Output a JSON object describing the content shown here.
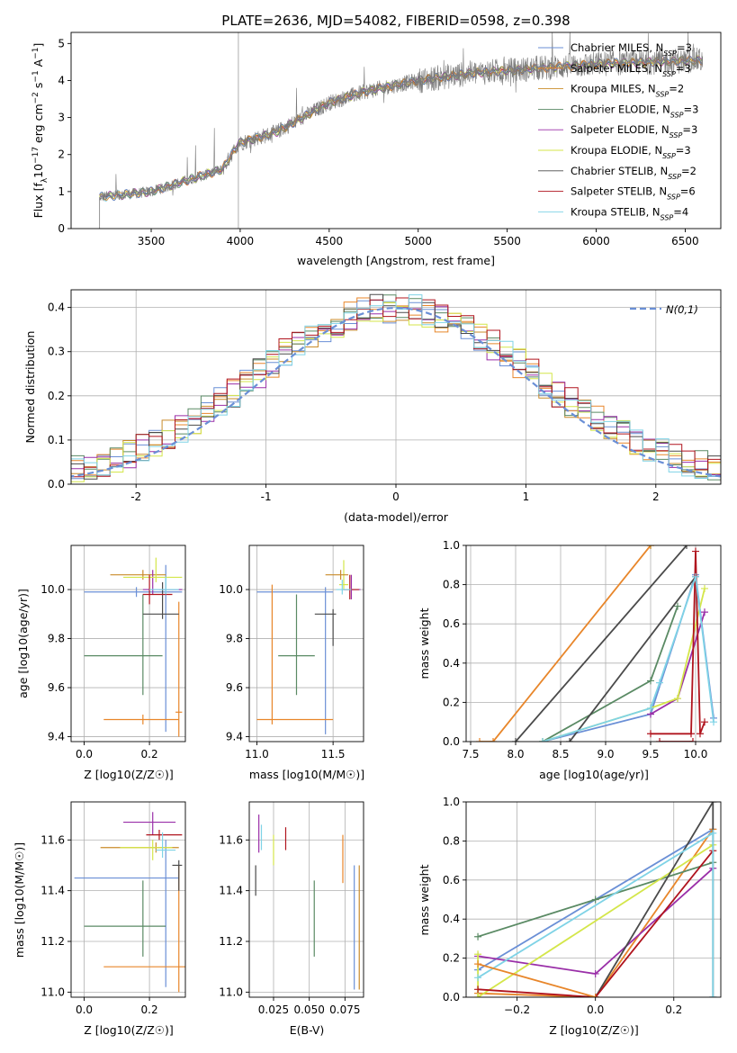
{
  "chart_data": [
    {
      "type": "line",
      "title": "PLATE=2636, MJD=54082, FIBERID=0598, z=0.398",
      "xlabel": "wavelength [Angstrom, rest frame]",
      "ylabel_parts": [
        "Flux [f",
        "λ",
        "10",
        "−17",
        " erg cm",
        "−2",
        " s",
        "−1",
        " A",
        "−1",
        "]"
      ],
      "xlim": [
        3050,
        6700
      ],
      "ylim": [
        0,
        5.3
      ],
      "xticks": [
        3500,
        4000,
        4500,
        5000,
        5500,
        6000,
        6500
      ],
      "yticks": [
        0,
        1,
        2,
        3,
        4,
        5
      ],
      "legend_position": "upper-right",
      "spectrum_range": [
        3210,
        6600
      ],
      "series": [
        {
          "name": "Chabrier MILES, N",
          "sub": "SSP",
          "tail": "=3",
          "color": "#6a8fd6"
        },
        {
          "name": "Salpeter MILES, N",
          "sub": "SSP",
          "tail": "=3",
          "color": "#e8862a"
        },
        {
          "name": "Kroupa MILES, N",
          "sub": "SSP",
          "tail": "=2",
          "color": "#c98b2a"
        },
        {
          "name": "Chabrier ELODIE, N",
          "sub": "SSP",
          "tail": "=3",
          "color": "#5a8a64"
        },
        {
          "name": "Salpeter ELODIE, N",
          "sub": "SSP",
          "tail": "=3",
          "color": "#9a2fa8"
        },
        {
          "name": "Kroupa ELODIE, N",
          "sub": "SSP",
          "tail": "=3",
          "color": "#d4e64a"
        },
        {
          "name": "Chabrier STELIB, N",
          "sub": "SSP",
          "tail": "=2",
          "color": "#4a4a4a"
        },
        {
          "name": "Salpeter STELIB, N",
          "sub": "SSP",
          "tail": "=6",
          "color": "#b0141e"
        },
        {
          "name": "Kroupa STELIB, N",
          "sub": "SSP",
          "tail": "=4",
          "color": "#7fd3e6"
        }
      ],
      "continuum_knots": [
        [
          3210,
          0.85
        ],
        [
          3500,
          1.0
        ],
        [
          3700,
          1.3
        ],
        [
          3900,
          1.6
        ],
        [
          3990,
          2.3
        ],
        [
          4200,
          2.6
        ],
        [
          4500,
          3.4
        ],
        [
          4700,
          3.7
        ],
        [
          5000,
          4.0
        ],
        [
          5300,
          4.2
        ],
        [
          5600,
          4.3
        ],
        [
          6000,
          4.45
        ],
        [
          6600,
          4.55
        ]
      ]
    },
    {
      "type": "histogram",
      "xlabel": "(data-model)/error",
      "ylabel": "Normed distribution",
      "xlim": [
        -2.5,
        2.5
      ],
      "ylim": [
        0,
        0.44
      ],
      "xticks": [
        -2,
        -1,
        0,
        1,
        2
      ],
      "yticks": [
        0.0,
        0.1,
        0.2,
        0.3,
        0.4
      ],
      "bin_width": 0.1,
      "legend_position": "upper-right",
      "reference_curve": {
        "name": "N(0,1)",
        "color": "#6a8fd6",
        "mean": 0,
        "sigma": 1
      }
    },
    {
      "type": "scatter",
      "name": "age-vs-metallicity",
      "xlabel": "Z [log10(Z/Z☉)]",
      "ylabel": "age  [log10(age/yr)]",
      "xlim": [
        -0.04,
        0.31
      ],
      "ylim": [
        9.38,
        10.18
      ],
      "xticks": [
        0.0,
        0.2
      ],
      "yticks": [
        9.4,
        9.6,
        9.8,
        10.0
      ],
      "points": [
        {
          "series": 0,
          "x": 0.16,
          "y": 9.99,
          "xerr": [
            0.16,
            0.14
          ],
          "yerr": [
            0.02,
            0.02
          ]
        },
        {
          "series": 0,
          "x": 0.25,
          "y": 10.0,
          "xerr": [
            0.02,
            0.05
          ],
          "yerr": [
            0.58,
            0.1
          ]
        },
        {
          "series": 1,
          "x": 0.18,
          "y": 9.47,
          "xerr": [
            0.12,
            0.11
          ],
          "yerr": [
            0.02,
            0.02
          ]
        },
        {
          "series": 1,
          "x": 0.29,
          "y": 9.5,
          "xerr": [
            0.01,
            0.01
          ],
          "yerr": [
            0.1,
            0.45
          ]
        },
        {
          "series": 2,
          "x": 0.18,
          "y": 10.06,
          "xerr": [
            0.1,
            0.07
          ],
          "yerr": [
            0.02,
            0.02
          ]
        },
        {
          "series": 3,
          "x": 0.18,
          "y": 9.73,
          "xerr": [
            0.18,
            0.06
          ],
          "yerr": [
            0.16,
            0.25
          ]
        },
        {
          "series": 4,
          "x": 0.21,
          "y": 10.0,
          "xerr": [
            0.03,
            0.09
          ],
          "yerr": [
            0.02,
            0.08
          ]
        },
        {
          "series": 5,
          "x": 0.22,
          "y": 10.05,
          "xerr": [
            0.1,
            0.08
          ],
          "yerr": [
            0.02,
            0.08
          ]
        },
        {
          "series": 6,
          "x": 0.24,
          "y": 9.9,
          "xerr": [
            0.06,
            0.05
          ],
          "yerr": [
            0.02,
            0.13
          ]
        },
        {
          "series": 7,
          "x": 0.2,
          "y": 9.98,
          "xerr": [
            0.02,
            0.07
          ],
          "yerr": [
            0.04,
            0.08
          ]
        },
        {
          "series": 8,
          "x": 0.25,
          "y": 10.0,
          "xerr": [
            0.05,
            0.04
          ],
          "yerr": [
            0.02,
            0.05
          ]
        }
      ]
    },
    {
      "type": "scatter",
      "name": "age-vs-mass",
      "xlabel": "mass [log10(M/M☉)]",
      "xlim": [
        10.95,
        11.7
      ],
      "ylim": [
        9.38,
        10.18
      ],
      "xticks": [
        11.0,
        11.5
      ],
      "yticks": [
        9.4,
        9.6,
        9.8,
        10.0
      ],
      "points": [
        {
          "series": 0,
          "x": 11.45,
          "y": 9.99,
          "xerr": [
            0.45,
            0.05
          ],
          "yerr": [
            0.58,
            0.02
          ]
        },
        {
          "series": 1,
          "x": 11.1,
          "y": 9.47,
          "xerr": [
            0.1,
            0.4
          ],
          "yerr": [
            0.02,
            0.55
          ]
        },
        {
          "series": 3,
          "x": 11.26,
          "y": 9.73,
          "xerr": [
            0.12,
            0.12
          ],
          "yerr": [
            0.16,
            0.25
          ]
        },
        {
          "series": 4,
          "x": 11.62,
          "y": 10.0,
          "xerr": [
            0.06,
            0.06
          ],
          "yerr": [
            0.04,
            0.06
          ]
        },
        {
          "series": 5,
          "x": 11.57,
          "y": 10.02,
          "xerr": [
            0.03,
            0.03
          ],
          "yerr": [
            0.02,
            0.1
          ]
        },
        {
          "series": 6,
          "x": 11.5,
          "y": 9.9,
          "xerr": [
            0.12,
            0.02
          ],
          "yerr": [
            0.13,
            0.02
          ]
        },
        {
          "series": 7,
          "x": 11.61,
          "y": 10.0,
          "xerr": [
            0.04,
            0.06
          ],
          "yerr": [
            0.04,
            0.06
          ]
        },
        {
          "series": 8,
          "x": 11.56,
          "y": 10.0,
          "xerr": [
            0.04,
            0.06
          ],
          "yerr": [
            0.02,
            0.04
          ]
        },
        {
          "series": 2,
          "x": 11.55,
          "y": 10.06,
          "xerr": [
            0.1,
            0.05
          ],
          "yerr": [
            0.02,
            0.02
          ]
        }
      ]
    },
    {
      "type": "line",
      "name": "mass-weight-vs-age",
      "xlabel": "age  [log10(age/yr)]",
      "ylabel": "mass weight",
      "xlim": [
        7.45,
        10.28
      ],
      "ylim": [
        0,
        1.0
      ],
      "xticks": [
        7.5,
        8.0,
        8.5,
        9.0,
        9.5,
        10.0
      ],
      "yticks": [
        0.0,
        0.2,
        0.4,
        0.6,
        0.8,
        1.0
      ],
      "series": [
        {
          "series": 0,
          "points": [
            [
              8.3,
              0.0
            ],
            [
              9.5,
              0.14
            ],
            [
              10.0,
              0.85
            ],
            [
              10.2,
              0.12
            ]
          ]
        },
        {
          "series": 1,
          "points": [
            [
              7.6,
              0.0
            ],
            [
              7.75,
              0.0
            ],
            [
              9.5,
              1.0
            ]
          ]
        },
        {
          "series": 2,
          "points": [
            [
              9.5,
              1.0
            ]
          ]
        },
        {
          "series": 3,
          "points": [
            [
              8.3,
              0.0
            ],
            [
              9.5,
              0.31
            ],
            [
              9.8,
              0.69
            ]
          ]
        },
        {
          "series": 4,
          "points": [
            [
              9.5,
              0.14
            ],
            [
              9.8,
              0.22
            ],
            [
              10.1,
              0.66
            ]
          ]
        },
        {
          "series": 5,
          "points": [
            [
              8.3,
              0.0
            ],
            [
              9.5,
              0.17
            ],
            [
              9.8,
              0.22
            ],
            [
              10.1,
              0.78
            ]
          ]
        },
        {
          "series": 6,
          "points": [
            [
              8.0,
              0.0
            ],
            [
              9.9,
              1.0
            ]
          ]
        },
        {
          "series": 6,
          "points": [
            [
              8.6,
              0.0
            ],
            [
              10.0,
              0.84
            ]
          ]
        },
        {
          "series": 7,
          "points": [
            [
              9.5,
              0.04
            ],
            [
              9.95,
              0.04
            ],
            [
              10.0,
              0.97
            ],
            [
              10.05,
              0.04
            ],
            [
              10.1,
              0.1
            ]
          ]
        },
        {
          "series": 7,
          "points": [
            [
              9.6,
              0.0
            ],
            [
              9.97,
              0.0
            ]
          ]
        },
        {
          "series": 8,
          "points": [
            [
              8.3,
              0.0
            ],
            [
              9.5,
              0.17
            ],
            [
              9.6,
              0.3
            ],
            [
              10.0,
              0.84
            ],
            [
              10.2,
              0.1
            ]
          ]
        }
      ]
    },
    {
      "type": "scatter",
      "name": "mass-vs-metallicity",
      "xlabel": "Z [log10(Z/Z☉)]",
      "ylabel": "mass [log10(M/M☉)]",
      "xlim": [
        -0.04,
        0.31
      ],
      "ylim": [
        10.98,
        11.75
      ],
      "xticks": [
        0.0,
        0.2
      ],
      "yticks": [
        11.0,
        11.2,
        11.4,
        11.6
      ],
      "points": [
        {
          "series": 0,
          "x": 0.25,
          "y": 11.45,
          "xerr": [
            0.28,
            0.04
          ],
          "yerr": [
            0.43,
            0.15
          ]
        },
        {
          "series": 1,
          "x": 0.29,
          "y": 11.1,
          "xerr": [
            0.23,
            0.02
          ],
          "yerr": [
            0.1,
            0.4
          ]
        },
        {
          "series": 2,
          "x": 0.22,
          "y": 11.57,
          "xerr": [
            0.17,
            0.07
          ],
          "yerr": [
            0.02,
            0.02
          ]
        },
        {
          "series": 3,
          "x": 0.18,
          "y": 11.26,
          "xerr": [
            0.18,
            0.07
          ],
          "yerr": [
            0.12,
            0.18
          ]
        },
        {
          "series": 4,
          "x": 0.21,
          "y": 11.67,
          "xerr": [
            0.09,
            0.07
          ],
          "yerr": [
            0.05,
            0.04
          ]
        },
        {
          "series": 5,
          "x": 0.21,
          "y": 11.57,
          "xerr": [
            0.1,
            0.06
          ],
          "yerr": [
            0.05,
            0.03
          ]
        },
        {
          "series": 6,
          "x": 0.29,
          "y": 11.5,
          "xerr": [
            0.02,
            0.01
          ],
          "yerr": [
            0.1,
            0.02
          ]
        },
        {
          "series": 7,
          "x": 0.23,
          "y": 11.62,
          "xerr": [
            0.04,
            0.07
          ],
          "yerr": [
            0.02,
            0.02
          ]
        },
        {
          "series": 8,
          "x": 0.24,
          "y": 11.56,
          "xerr": [
            0.02,
            0.04
          ],
          "yerr": [
            0.03,
            0.07
          ]
        }
      ]
    },
    {
      "type": "scatter",
      "name": "mass-vs-extinction",
      "xlabel": "E(B-V)",
      "xlim": [
        0.008,
        0.088
      ],
      "ylim": [
        10.98,
        11.75
      ],
      "xticks": [
        0.025,
        0.05,
        0.075
      ],
      "xticklabels": [
        "0.025",
        "0.050",
        "0.075"
      ],
      "yticks": [
        11.0,
        11.2,
        11.4,
        11.6
      ],
      "segments": [
        {
          "series": 6,
          "x": 0.0125,
          "y": [
            11.38,
            11.5
          ]
        },
        {
          "series": 4,
          "x": 0.0147,
          "y": [
            11.55,
            11.7
          ]
        },
        {
          "series": 8,
          "x": 0.0165,
          "y": [
            11.56,
            11.66
          ]
        },
        {
          "series": 5,
          "x": 0.025,
          "y": [
            11.5,
            11.62
          ]
        },
        {
          "series": 7,
          "x": 0.0335,
          "y": [
            11.56,
            11.65
          ]
        },
        {
          "series": 3,
          "x": 0.0535,
          "y": [
            11.14,
            11.44
          ]
        },
        {
          "series": 1,
          "x": 0.0735,
          "y": [
            11.43,
            11.62
          ]
        },
        {
          "series": 0,
          "x": 0.0815,
          "y": [
            11.01,
            11.5
          ]
        },
        {
          "series": 2,
          "x": 0.085,
          "y": [
            11.01,
            11.5
          ]
        }
      ]
    },
    {
      "type": "line",
      "name": "mass-weight-vs-metallicity",
      "xlabel": "Z [log10(Z/Z☉)]",
      "ylabel": "mass weight",
      "xlim": [
        -0.33,
        0.32
      ],
      "ylim": [
        0,
        1.0
      ],
      "xticks": [
        -0.2,
        0.0,
        0.2
      ],
      "xticklabels": [
        "−0.2",
        "0.0",
        "0.2"
      ],
      "yticks": [
        0.0,
        0.2,
        0.4,
        0.6,
        0.8,
        1.0
      ],
      "series": [
        {
          "series": 0,
          "points": [
            [
              -0.3,
              0.14
            ],
            [
              0.3,
              0.86
            ]
          ]
        },
        {
          "series": 1,
          "points": [
            [
              -0.3,
              0.02
            ],
            [
              0.0,
              0.0
            ],
            [
              0.3,
              0.86
            ]
          ]
        },
        {
          "series": 3,
          "points": [
            [
              -0.3,
              0.31
            ],
            [
              0.0,
              0.5
            ],
            [
              0.3,
              0.69
            ]
          ]
        },
        {
          "series": 4,
          "points": [
            [
              -0.3,
              0.21
            ],
            [
              0.0,
              0.12
            ],
            [
              0.3,
              0.66
            ]
          ]
        },
        {
          "series": 5,
          "points": [
            [
              -0.3,
              0.22
            ],
            [
              -0.3,
              0.0
            ],
            [
              0.3,
              0.78
            ]
          ]
        },
        {
          "series": 6,
          "points": [
            [
              0.0,
              0.0
            ],
            [
              0.3,
              1.0
            ],
            [
              0.3,
              0.0
            ]
          ]
        },
        {
          "series": 7,
          "points": [
            [
              -0.3,
              0.04
            ],
            [
              0.0,
              0.0
            ],
            [
              0.3,
              0.75
            ]
          ]
        },
        {
          "series": 8,
          "points": [
            [
              -0.3,
              0.1
            ],
            [
              0.3,
              0.84
            ],
            [
              0.3,
              0.0
            ]
          ]
        },
        {
          "series": 1,
          "points": [
            [
              -0.3,
              0.17
            ],
            [
              0.0,
              0.0
            ]
          ]
        }
      ]
    }
  ]
}
